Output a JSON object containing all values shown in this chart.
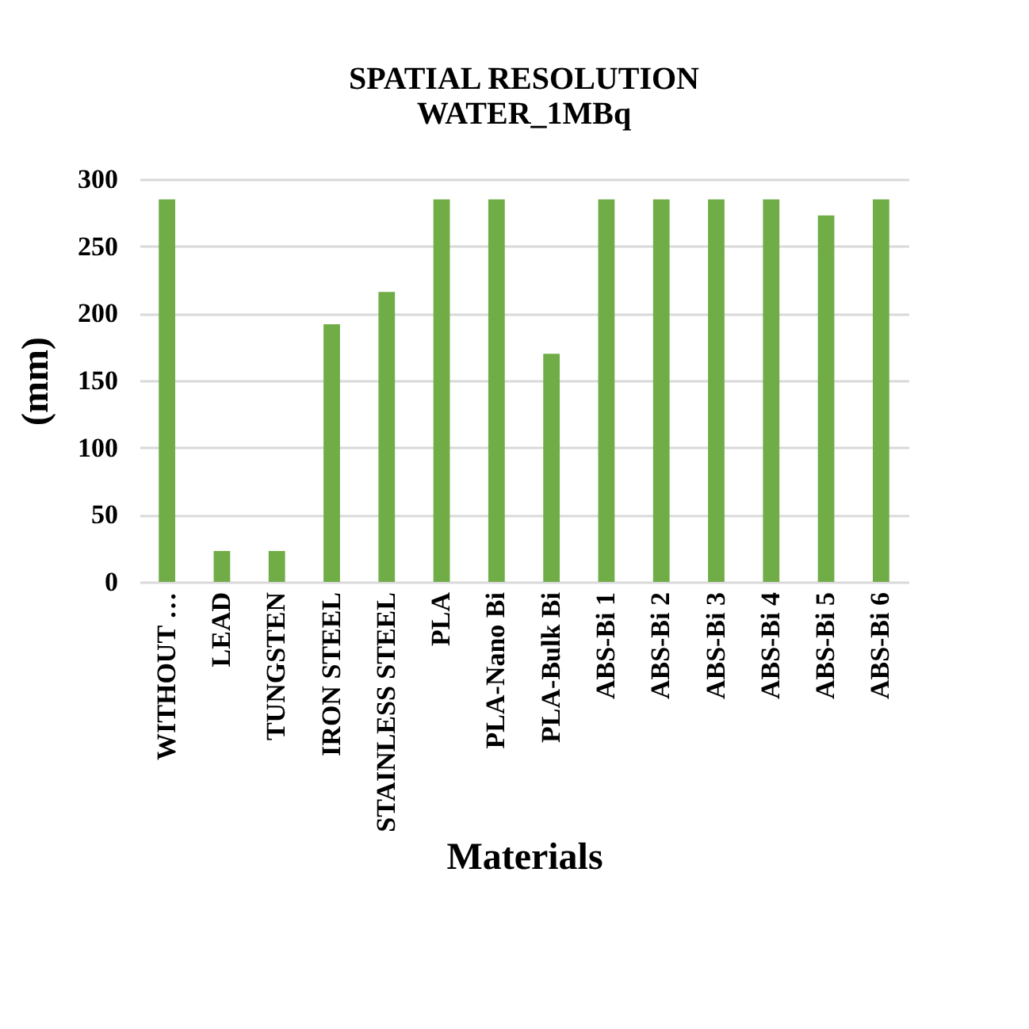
{
  "chart_data": {
    "type": "bar",
    "title": [
      "SPATIAL RESOLUTION",
      "WATER_1MBq"
    ],
    "xlabel": "Materials",
    "ylabel": "(mm)",
    "categories": [
      "WITHOUT …",
      "LEAD",
      "TUNGSTEN",
      "IRON STEEL",
      "STAINLESS STEEL",
      "PLA",
      "PLA-Nano Bi",
      "PLA-Bulk Bi",
      "ABS-Bi 1",
      "ABS-Bi 2",
      "ABS-Bi 3",
      "ABS-Bi 4",
      "ABS-Bi 5",
      "ABS-Bi 6"
    ],
    "values": [
      285,
      23,
      23,
      192,
      216,
      285,
      285,
      170,
      285,
      285,
      285,
      285,
      273,
      285
    ],
    "color": "#70ad47",
    "ylim": [
      0,
      300
    ],
    "yticks": [
      0,
      50,
      100,
      150,
      200,
      250,
      300
    ],
    "grid": "y"
  }
}
